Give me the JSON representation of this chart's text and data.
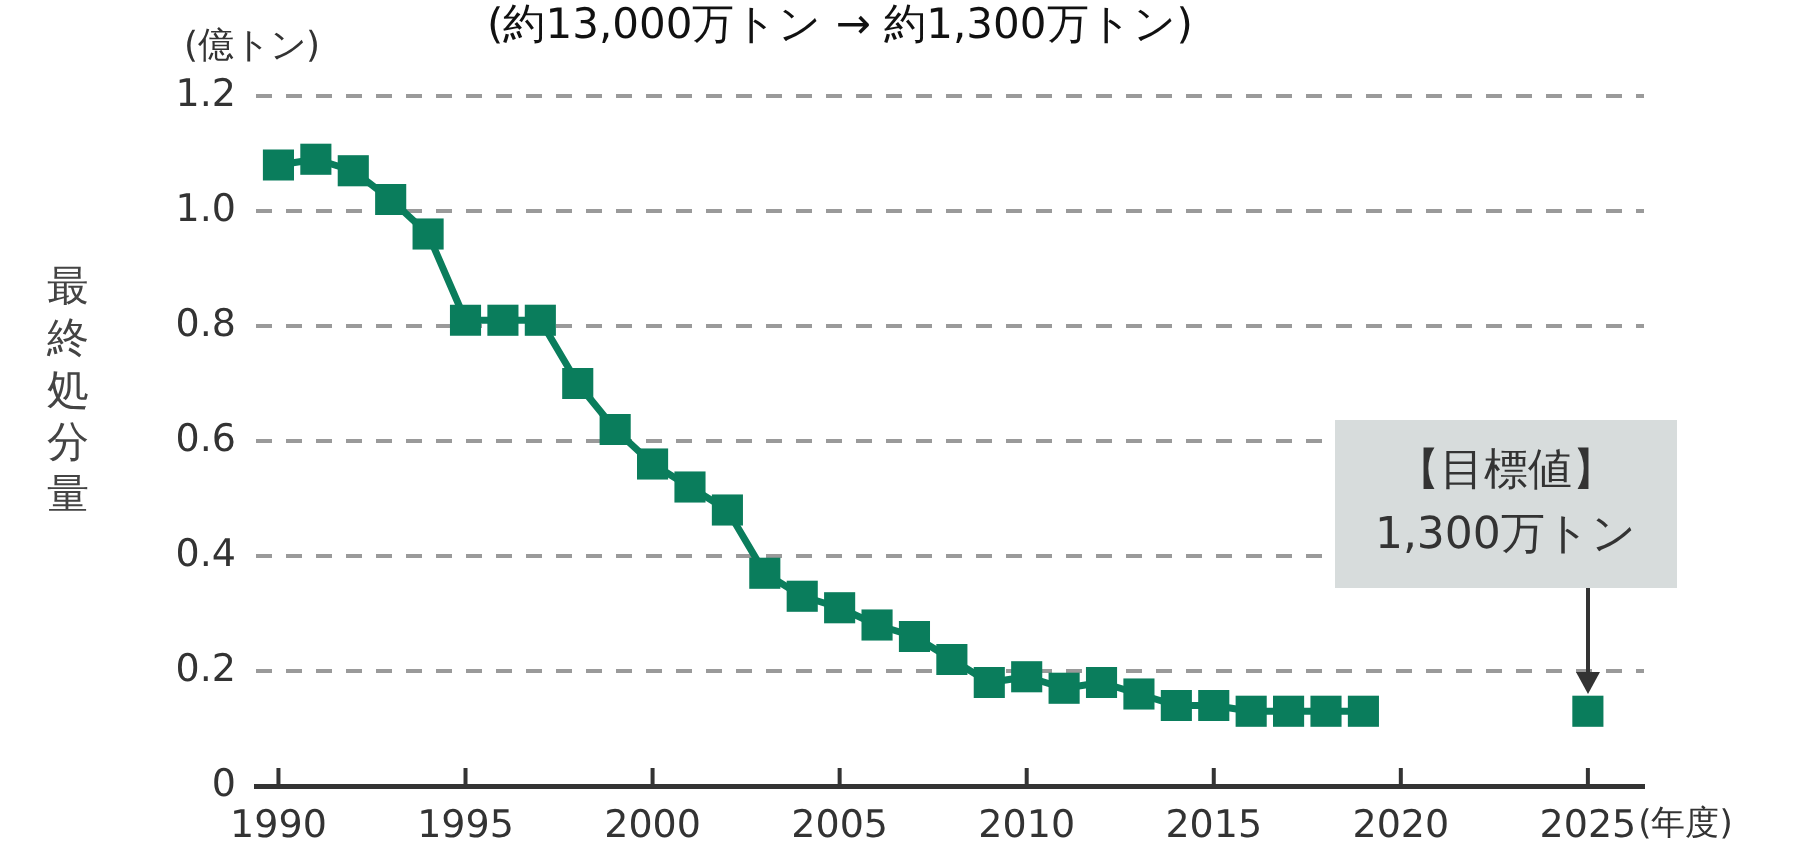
{
  "chart_data": {
    "type": "line",
    "title": "(約13,000万トン → 約1,300万トン)",
    "xlabel": "(年度)",
    "ylabel": "最終処分量",
    "annotations": [
      "(億トン)",
      "【目標値】\n1,300万トン"
    ],
    "xlim": [
      1989.4,
      2026.5
    ],
    "xticks": [
      1990,
      1995,
      2000,
      2005,
      2010,
      2015,
      2020,
      2025
    ],
    "ylim": [
      0,
      1.2
    ],
    "yticks": [
      0,
      0.2,
      0.4,
      0.6,
      0.8,
      {
        "value": 1,
        "label": "1.0"
      },
      1.2
    ],
    "grid": "y",
    "marker": "square",
    "line_style": "solid",
    "series": [
      {
        "color": "#0a7d5c",
        "x": [
          1990,
          1991,
          1992,
          1993,
          1994,
          1995,
          1996,
          1997,
          1998,
          1999,
          2000,
          2001,
          2002,
          2003,
          2004,
          2005,
          2006,
          2007,
          2008,
          2009,
          2010,
          2011,
          2012,
          2013,
          2014,
          2015,
          2016,
          2017,
          2018,
          2019
        ],
        "values": [
          1.08,
          1.09,
          1.07,
          1.02,
          0.96,
          0.81,
          0.81,
          0.81,
          0.7,
          0.62,
          0.56,
          0.52,
          0.48,
          0.37,
          0.33,
          0.31,
          0.28,
          0.26,
          0.22,
          0.18,
          0.19,
          0.17,
          0.18,
          0.16,
          0.14,
          0.14,
          0.13,
          0.13,
          0.13,
          0.13
        ]
      },
      {
        "color": "#0a7d5c",
        "x": [
          2025
        ],
        "values": [
          0.13
        ]
      }
    ]
  }
}
